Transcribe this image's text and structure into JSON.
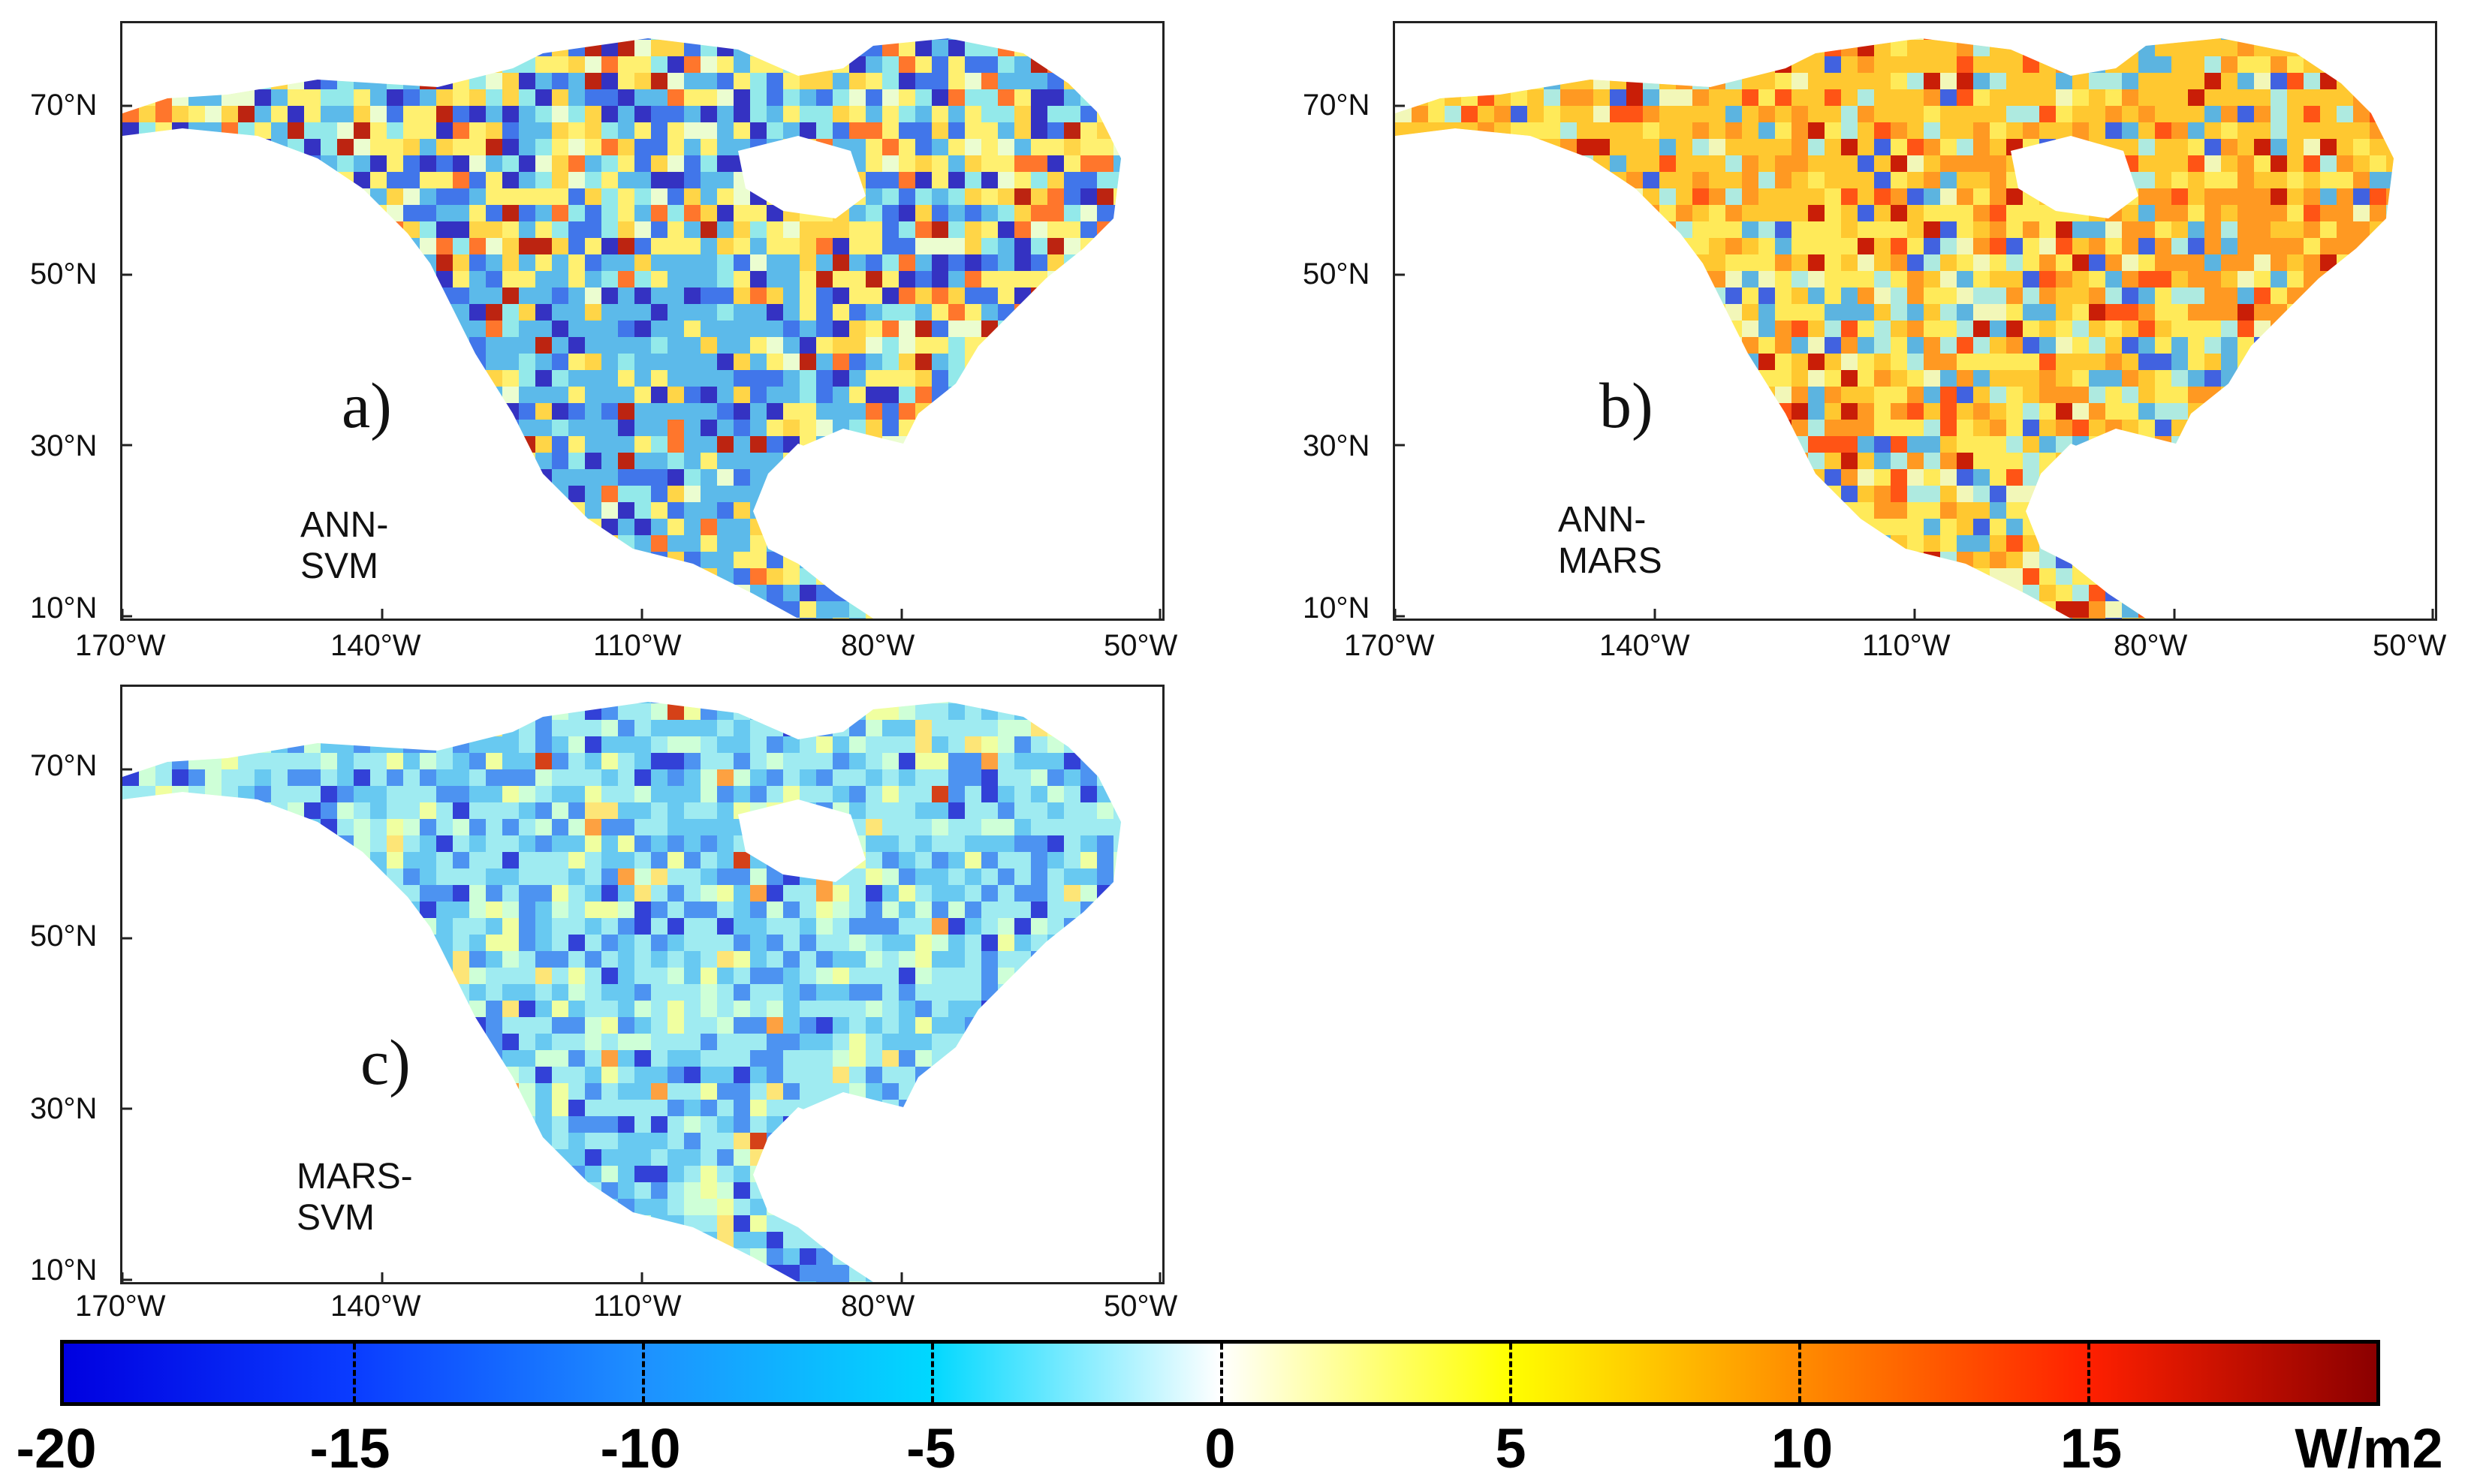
{
  "panels": [
    {
      "id": "a",
      "tag": "a)",
      "name": "ANN-SVM",
      "scheme": "mixed"
    },
    {
      "id": "b",
      "tag": "b)",
      "name": "ANN-MARS",
      "scheme": "warm"
    },
    {
      "id": "c",
      "tag": "c)",
      "name": "MARS-SVM",
      "scheme": "cool"
    }
  ],
  "axes": {
    "lat_labels": [
      "70°N",
      "50°N",
      "30°N",
      "10°N"
    ],
    "lon_labels": [
      "170°W",
      "140°W",
      "110°W",
      "80°W",
      "50°W"
    ]
  },
  "colorbar": {
    "ticks": [
      "-20",
      "-15",
      "-10",
      "-5",
      "0",
      "5",
      "10",
      "15"
    ],
    "unit": "W/m2",
    "colors": [
      "#0000e0",
      "#0a3cff",
      "#1e90ff",
      "#00d8ff",
      "#ffffff",
      "#ffff00",
      "#ff8c00",
      "#ff2000",
      "#8b0000"
    ]
  }
}
